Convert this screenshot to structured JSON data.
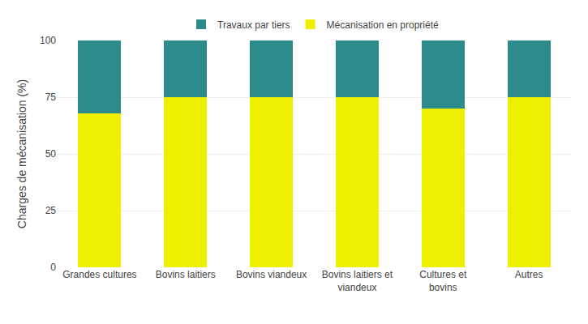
{
  "chart_data": {
    "type": "bar",
    "stacked": true,
    "categories": [
      "Grandes cultures",
      "Bovins laitiers",
      "Bovins viandeux",
      "Bovins laitiers et\nviandeux",
      "Cultures et\nbovins",
      "Autres"
    ],
    "series": [
      {
        "name": "Mécanisation en propriété",
        "color": "#EFEF00",
        "values": [
          68,
          75,
          75,
          75,
          70,
          75
        ]
      },
      {
        "name": "Travaux par tiers",
        "color": "#2E8B8B",
        "values": [
          32,
          25,
          25,
          25,
          30,
          25
        ]
      }
    ],
    "ylabel": "Charges de mécanisation (%)",
    "ylim": [
      0,
      100
    ],
    "yticks": [
      0,
      25,
      50,
      75,
      100
    ],
    "grid": true,
    "legend": "top"
  }
}
